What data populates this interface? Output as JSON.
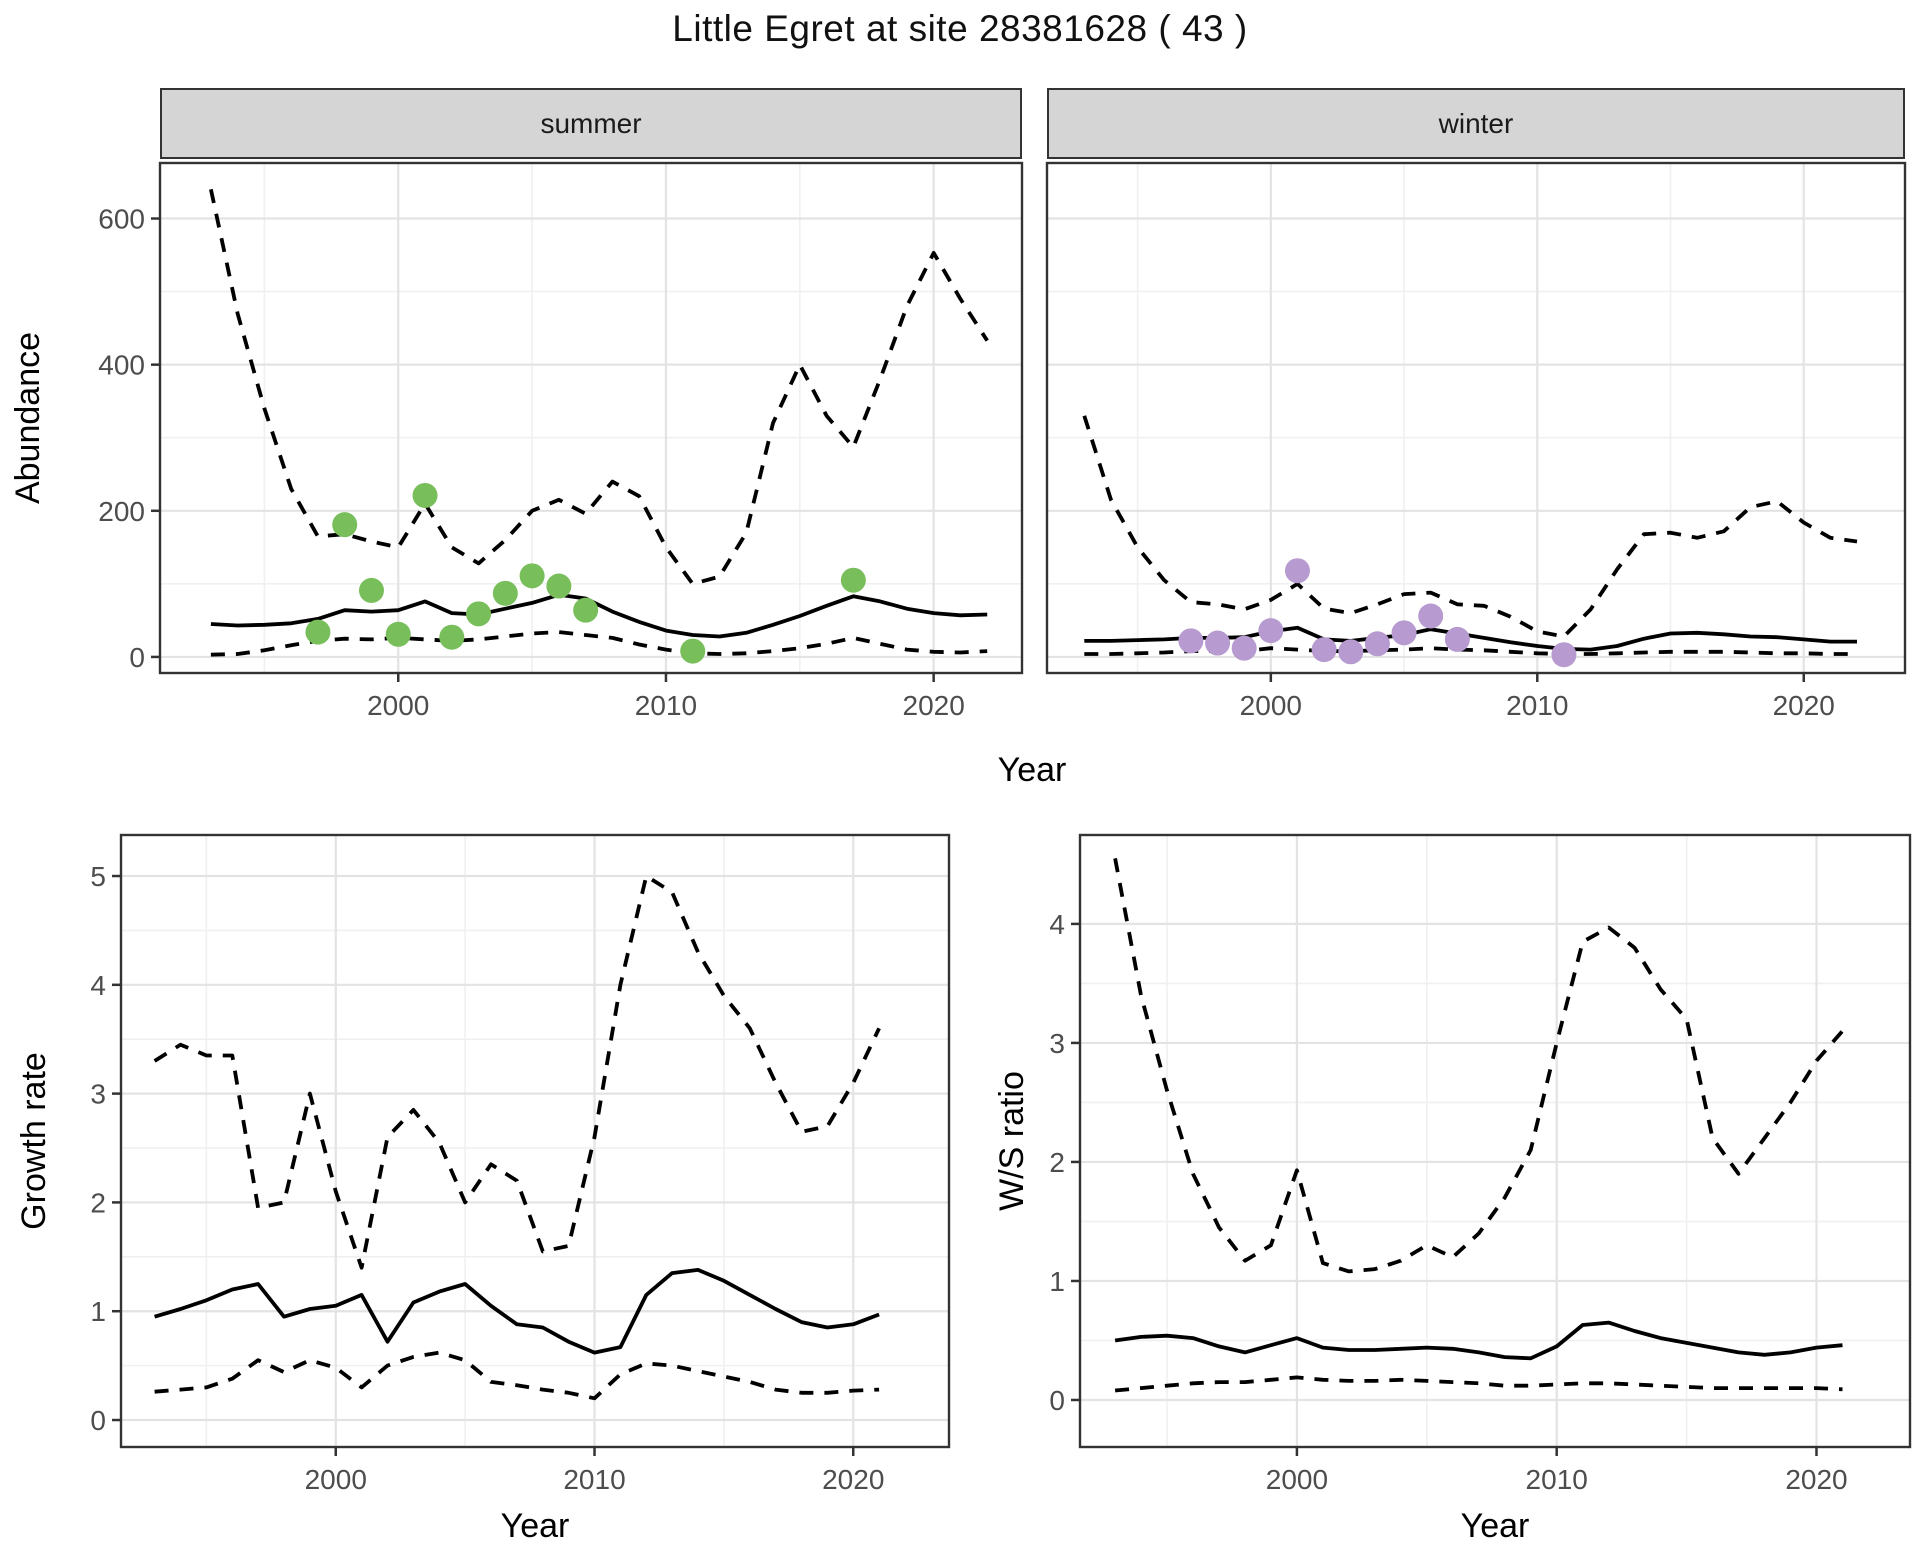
{
  "title": "Little Egret at site 28381628 ( 43 )",
  "axis_labels": {
    "x": "Year",
    "y_abundance": "Abundance",
    "y_growth": "Growth rate",
    "y_ws": "W/S ratio"
  },
  "colors": {
    "line": "#000000",
    "summer_point": "#78be5a",
    "winter_point": "#b69ad0",
    "strip_fill": "#d5d5d5",
    "panel_border": "#333333",
    "grid_major": "#e3e3e3",
    "grid_minor": "#f0f0f0",
    "tick_text": "#4d4d4d",
    "tick_mark": "#333333"
  },
  "chart_data": [
    {
      "id": "summer-abundance",
      "type": "line",
      "facet_label": "summer",
      "title": "",
      "xlabel": "Year",
      "ylabel": "Abundance",
      "xlim": [
        1991.1,
        2023.3
      ],
      "ylim": [
        -22,
        676
      ],
      "x_ticks": [
        2000,
        2010,
        2020
      ],
      "x_minor": [
        1995,
        2005,
        2015
      ],
      "y_ticks": [
        0,
        200,
        400,
        600
      ],
      "y_minor": [
        100,
        300,
        500
      ],
      "grid": true,
      "legend": "none",
      "years": [
        1993,
        1994,
        1995,
        1996,
        1997,
        1998,
        1999,
        2000,
        2001,
        2002,
        2003,
        2004,
        2005,
        2006,
        2007,
        2008,
        2009,
        2010,
        2011,
        2012,
        2013,
        2014,
        2015,
        2016,
        2017,
        2018,
        2019,
        2020,
        2021,
        2022
      ],
      "series": [
        {
          "name": "upper_ci",
          "style": "dashed",
          "values": [
            640,
            470,
            340,
            230,
            165,
            168,
            158,
            150,
            210,
            150,
            128,
            160,
            200,
            215,
            196,
            240,
            220,
            150,
            100,
            110,
            170,
            320,
            400,
            330,
            287,
            380,
            480,
            553,
            490,
            433
          ]
        },
        {
          "name": "median",
          "style": "solid",
          "values": [
            45,
            43,
            44,
            46,
            52,
            64,
            62,
            64,
            76,
            60,
            58,
            66,
            74,
            85,
            80,
            62,
            48,
            36,
            30,
            28,
            33,
            44,
            56,
            70,
            83,
            76,
            66,
            60,
            57,
            58
          ]
        },
        {
          "name": "lower_ci",
          "style": "dashed",
          "values": [
            3,
            4,
            9,
            16,
            22,
            25,
            24,
            26,
            24,
            22,
            24,
            28,
            32,
            34,
            30,
            26,
            17,
            10,
            5,
            4,
            5,
            8,
            12,
            18,
            26,
            18,
            10,
            7,
            6,
            8
          ]
        }
      ],
      "points": {
        "color_key": "summer_point",
        "data": [
          [
            1997,
            34
          ],
          [
            1998,
            181
          ],
          [
            1999,
            91
          ],
          [
            2000,
            31
          ],
          [
            2001,
            221
          ],
          [
            2002,
            27
          ],
          [
            2003,
            59
          ],
          [
            2004,
            87
          ],
          [
            2005,
            111
          ],
          [
            2006,
            97
          ],
          [
            2007,
            64
          ],
          [
            2011,
            8
          ],
          [
            2017,
            105
          ]
        ]
      }
    },
    {
      "id": "winter-abundance",
      "type": "line",
      "facet_label": "winter",
      "title": "",
      "xlabel": "Year",
      "ylabel": "Abundance",
      "xlim": [
        1991.6,
        2023.8
      ],
      "ylim": [
        -22,
        676
      ],
      "x_ticks": [
        2000,
        2010,
        2020
      ],
      "x_minor": [
        1995,
        2005,
        2015
      ],
      "y_ticks": [
        0,
        200,
        400,
        600
      ],
      "y_minor": [
        100,
        300,
        500
      ],
      "grid": true,
      "legend": "none",
      "years": [
        1993,
        1994,
        1995,
        1996,
        1997,
        1998,
        1999,
        2000,
        2001,
        2002,
        2003,
        2004,
        2005,
        2006,
        2007,
        2008,
        2009,
        2010,
        2011,
        2012,
        2013,
        2014,
        2015,
        2016,
        2017,
        2018,
        2019,
        2020,
        2021,
        2022
      ],
      "series": [
        {
          "name": "upper_ci",
          "style": "dashed",
          "values": [
            330,
            215,
            150,
            105,
            75,
            72,
            65,
            78,
            100,
            66,
            60,
            72,
            86,
            88,
            72,
            70,
            55,
            35,
            28,
            65,
            120,
            168,
            170,
            163,
            172,
            205,
            213,
            184,
            163,
            158
          ]
        },
        {
          "name": "median",
          "style": "solid",
          "values": [
            22,
            22,
            23,
            24,
            26,
            26,
            27,
            35,
            40,
            24,
            22,
            26,
            30,
            38,
            32,
            26,
            20,
            15,
            11,
            10,
            15,
            25,
            32,
            33,
            31,
            28,
            27,
            24,
            21,
            21
          ]
        },
        {
          "name": "lower_ci",
          "style": "dashed",
          "values": [
            4,
            4,
            5,
            6,
            8,
            8,
            8,
            12,
            10,
            8,
            8,
            9,
            10,
            12,
            10,
            9,
            7,
            5,
            4,
            4,
            5,
            6,
            7,
            7,
            7,
            6,
            5,
            5,
            4,
            4
          ]
        }
      ],
      "points": {
        "color_key": "winter_point",
        "data": [
          [
            1997,
            22
          ],
          [
            1998,
            19
          ],
          [
            1999,
            12
          ],
          [
            2000,
            36
          ],
          [
            2001,
            118
          ],
          [
            2002,
            10
          ],
          [
            2003,
            7
          ],
          [
            2004,
            18
          ],
          [
            2005,
            33
          ],
          [
            2006,
            56
          ],
          [
            2007,
            24
          ],
          [
            2011,
            3
          ]
        ]
      }
    },
    {
      "id": "growth-rate",
      "type": "line",
      "facet_label": "",
      "title": "",
      "xlabel": "Year",
      "ylabel": "Growth rate",
      "xlim": [
        1991.7,
        2023.7
      ],
      "ylim": [
        -0.248,
        5.377
      ],
      "x_ticks": [
        2000,
        2010,
        2020
      ],
      "x_minor": [
        1995,
        2005,
        2015
      ],
      "y_ticks": [
        0,
        1,
        2,
        3,
        4,
        5
      ],
      "y_minor": [
        0.5,
        1.5,
        2.5,
        3.5,
        4.5
      ],
      "grid": true,
      "legend": "none",
      "years": [
        1993,
        1994,
        1995,
        1996,
        1997,
        1998,
        1999,
        2000,
        2001,
        2002,
        2003,
        2004,
        2005,
        2006,
        2007,
        2008,
        2009,
        2010,
        2011,
        2012,
        2013,
        2014,
        2015,
        2016,
        2017,
        2018,
        2019,
        2020,
        2021
      ],
      "series": [
        {
          "name": "upper_ci",
          "style": "dashed",
          "values": [
            3.3,
            3.45,
            3.35,
            3.35,
            1.95,
            2.0,
            3.0,
            2.1,
            1.4,
            2.6,
            2.85,
            2.55,
            2.0,
            2.35,
            2.2,
            1.55,
            1.6,
            2.6,
            4.0,
            5.0,
            4.85,
            4.3,
            3.9,
            3.6,
            3.1,
            2.65,
            2.7,
            3.1,
            3.6
          ]
        },
        {
          "name": "median",
          "style": "solid",
          "values": [
            0.95,
            1.02,
            1.1,
            1.2,
            1.25,
            0.95,
            1.02,
            1.05,
            1.15,
            0.72,
            1.08,
            1.18,
            1.25,
            1.05,
            0.88,
            0.85,
            0.72,
            0.62,
            0.67,
            1.15,
            1.35,
            1.38,
            1.28,
            1.15,
            1.02,
            0.9,
            0.85,
            0.88,
            0.97
          ]
        },
        {
          "name": "lower_ci",
          "style": "dashed",
          "values": [
            0.26,
            0.28,
            0.3,
            0.38,
            0.55,
            0.44,
            0.55,
            0.48,
            0.3,
            0.5,
            0.58,
            0.62,
            0.55,
            0.35,
            0.32,
            0.28,
            0.25,
            0.2,
            0.42,
            0.52,
            0.5,
            0.45,
            0.4,
            0.35,
            0.28,
            0.25,
            0.25,
            0.27,
            0.28
          ]
        }
      ],
      "points": {
        "color_key": "",
        "data": []
      }
    },
    {
      "id": "ws-ratio",
      "type": "line",
      "facet_label": "",
      "title": "",
      "xlabel": "Year",
      "ylabel": "W/S ratio",
      "xlim": [
        1991.65,
        2023.6
      ],
      "ylim": [
        -0.395,
        4.747
      ],
      "x_ticks": [
        2000,
        2010,
        2020
      ],
      "x_minor": [
        1995,
        2005,
        2015
      ],
      "y_ticks": [
        0,
        1,
        2,
        3,
        4
      ],
      "y_minor": [
        0.5,
        1.5,
        2.5,
        3.5
      ],
      "grid": true,
      "legend": "none",
      "years": [
        1993,
        1994,
        1995,
        1996,
        1997,
        1998,
        1999,
        2000,
        2001,
        2002,
        2003,
        2004,
        2005,
        2006,
        2007,
        2008,
        2009,
        2010,
        2011,
        2012,
        2013,
        2014,
        2015,
        2016,
        2017,
        2018,
        2019,
        2020,
        2021
      ],
      "series": [
        {
          "name": "upper_ci",
          "style": "dashed",
          "values": [
            4.55,
            3.4,
            2.6,
            1.9,
            1.45,
            1.17,
            1.3,
            1.93,
            1.15,
            1.08,
            1.1,
            1.17,
            1.3,
            1.2,
            1.4,
            1.7,
            2.1,
            3.0,
            3.85,
            3.97,
            3.8,
            3.45,
            3.2,
            2.2,
            1.9,
            2.2,
            2.5,
            2.85,
            3.1
          ]
        },
        {
          "name": "median",
          "style": "solid",
          "values": [
            0.5,
            0.53,
            0.54,
            0.52,
            0.45,
            0.4,
            0.46,
            0.52,
            0.44,
            0.42,
            0.42,
            0.43,
            0.44,
            0.43,
            0.4,
            0.36,
            0.35,
            0.45,
            0.63,
            0.65,
            0.58,
            0.52,
            0.48,
            0.44,
            0.4,
            0.38,
            0.4,
            0.44,
            0.46
          ]
        },
        {
          "name": "lower_ci",
          "style": "dashed",
          "values": [
            0.08,
            0.1,
            0.12,
            0.14,
            0.15,
            0.15,
            0.17,
            0.19,
            0.17,
            0.16,
            0.16,
            0.17,
            0.16,
            0.15,
            0.14,
            0.12,
            0.12,
            0.13,
            0.14,
            0.14,
            0.13,
            0.12,
            0.11,
            0.1,
            0.1,
            0.1,
            0.1,
            0.1,
            0.09
          ]
        }
      ],
      "points": {
        "color_key": "",
        "data": []
      }
    }
  ]
}
